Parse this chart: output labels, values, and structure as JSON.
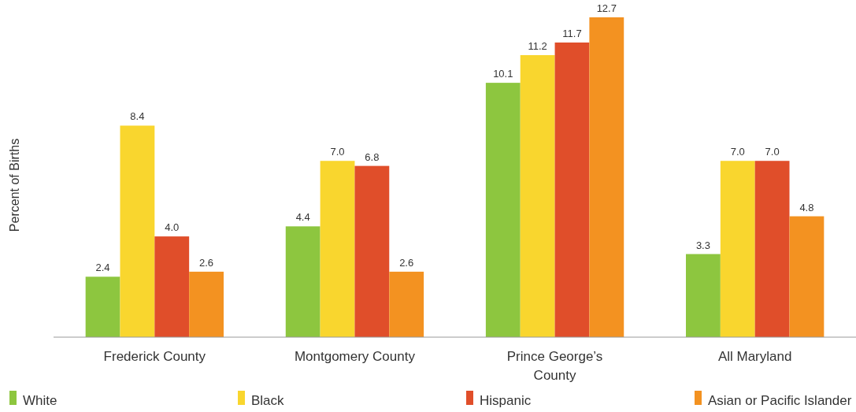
{
  "chart_data": {
    "type": "bar",
    "ylabel": "Percent of Births",
    "categories": [
      "Frederick County",
      "Montgomery County",
      "Prince George’s County",
      "All Maryland"
    ],
    "series": [
      {
        "name": "White",
        "color": "#8dc63f",
        "values": [
          2.4,
          4.4,
          10.1,
          3.3
        ],
        "value_labels": [
          "2.4",
          "4.4",
          "10.1",
          "3.3"
        ]
      },
      {
        "name": "Black",
        "color": "#f9d62e",
        "values": [
          8.4,
          7.0,
          11.2,
          7.0
        ],
        "value_labels": [
          "8.4",
          "7.0",
          "11.2",
          "7.0"
        ]
      },
      {
        "name": "Hispanic",
        "color": "#e04e2a",
        "values": [
          4.0,
          6.8,
          11.7,
          7.0
        ],
        "value_labels": [
          "4.0",
          "6.8",
          "11.7",
          "7.0"
        ]
      },
      {
        "name": "Asian or Pacific Islander",
        "color": "#f39221",
        "values": [
          2.6,
          2.6,
          12.7,
          4.8
        ],
        "value_labels": [
          "2.6",
          "2.6",
          "12.7",
          "4.8"
        ]
      }
    ],
    "legend": "bottom"
  }
}
